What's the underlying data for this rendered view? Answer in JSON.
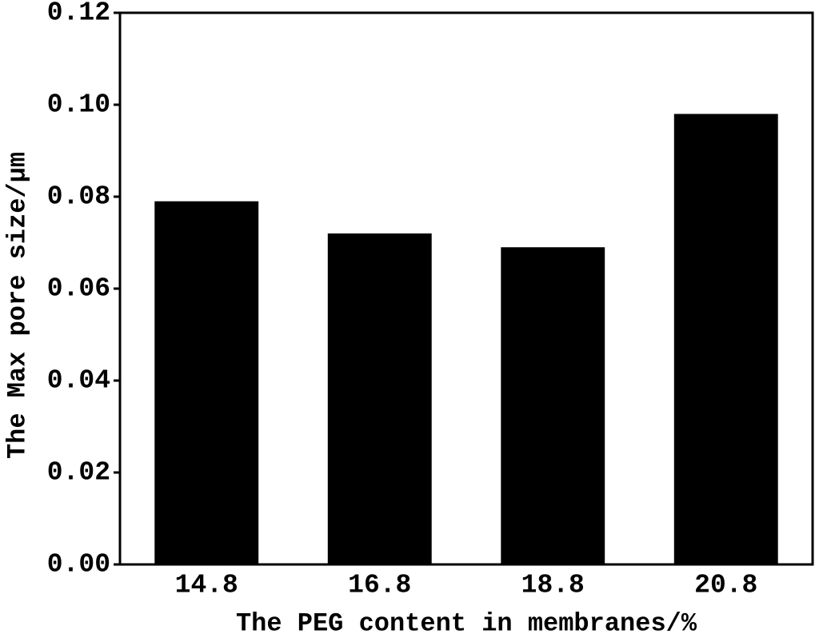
{
  "chart_data": {
    "type": "bar",
    "x_label": "The PEG content in membranes/%",
    "y_label": "The Max pore size/μm",
    "categories": [
      "14.8",
      "16.8",
      "18.8",
      "20.8"
    ],
    "values": [
      0.079,
      0.072,
      0.069,
      0.098
    ],
    "color": "#000000",
    "ylim": [
      0,
      0.12
    ],
    "yticks": [
      {
        "value": 0,
        "label": "0.00"
      },
      {
        "value": 0.02,
        "label": "0.02"
      },
      {
        "value": 0.04,
        "label": "0.04"
      },
      {
        "value": 0.06,
        "label": "0.06"
      },
      {
        "value": 0.08,
        "label": "0.08"
      },
      {
        "value": 0.1,
        "label": "0.10"
      },
      {
        "value": 0.12,
        "label": "0.12"
      }
    ],
    "grid": false
  }
}
